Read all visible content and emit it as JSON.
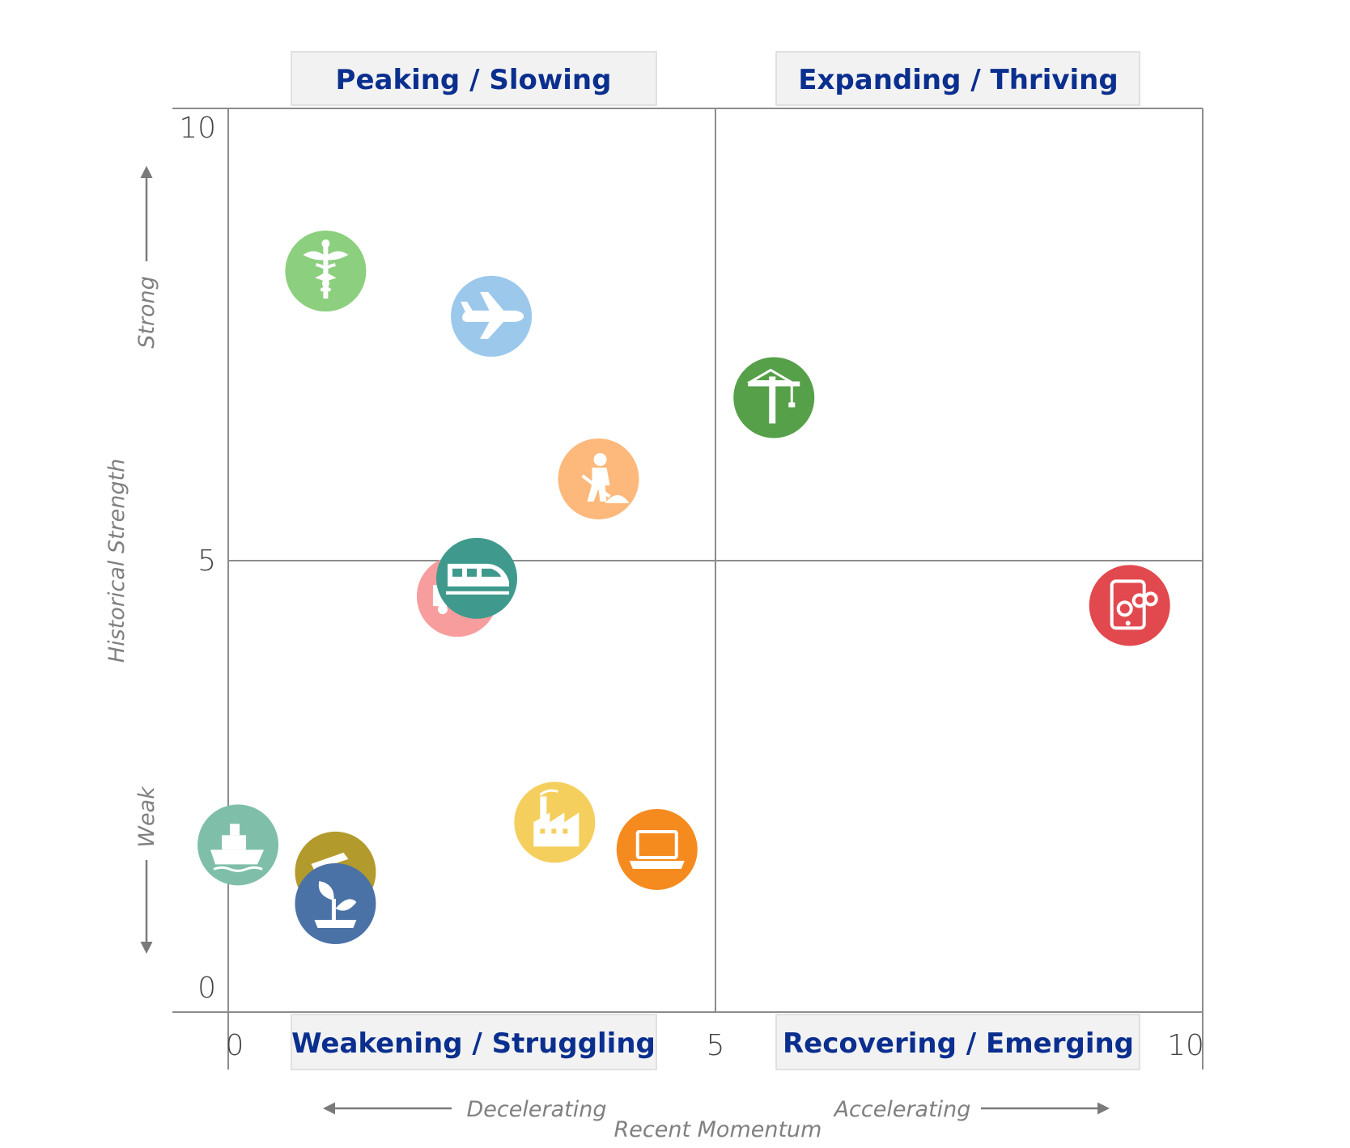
{
  "chart_data": {
    "type": "scatter",
    "title": "",
    "xlabel": "Recent Momentum",
    "ylabel": "Historical Strength",
    "xlim": [
      0,
      10
    ],
    "ylim": [
      0,
      10
    ],
    "x_ticks": [
      "0",
      "5",
      "10"
    ],
    "y_ticks": [
      "0",
      "5",
      "10"
    ],
    "x_direction": {
      "left": "Decelerating",
      "right": "Accelerating"
    },
    "y_direction": {
      "top": "Strong",
      "bottom": "Weak"
    },
    "quadrants": {
      "top_left": "Peaking / Slowing",
      "top_right": "Expanding / Thriving",
      "bottom_left": "Weakening / Struggling",
      "bottom_right": "Recovering / Emerging"
    },
    "colors": {
      "axis": "#808080",
      "quadrant_label": "#0b2f8f",
      "quadrant_box": "#f2f2f2"
    },
    "points": [
      {
        "icon": "caduceus-icon",
        "x": 1.0,
        "y": 8.2,
        "color": "#8ccf7e"
      },
      {
        "icon": "airplane-icon",
        "x": 2.7,
        "y": 7.7,
        "color": "#9cc8ec"
      },
      {
        "icon": "construction-worker-icon",
        "x": 3.8,
        "y": 5.9,
        "color": "#fdb97b"
      },
      {
        "icon": "crane-icon",
        "x": 5.6,
        "y": 6.8,
        "color": "#56a04a"
      },
      {
        "icon": "truck-icon",
        "x": 2.35,
        "y": 4.6,
        "color": "#f79d9d"
      },
      {
        "icon": "train-icon",
        "x": 2.55,
        "y": 4.8,
        "color": "#3f9a8d"
      },
      {
        "icon": "tablet-gears-icon",
        "x": 9.25,
        "y": 4.5,
        "color": "#e2494f"
      },
      {
        "icon": "ship-icon",
        "x": 0.1,
        "y": 1.85,
        "color": "#7fbfaa"
      },
      {
        "icon": "oil-pump-icon",
        "x": 1.1,
        "y": 1.55,
        "color": "#b39a2c"
      },
      {
        "icon": "plant-icon",
        "x": 1.1,
        "y": 1.2,
        "color": "#4a72a6"
      },
      {
        "icon": "factory-icon",
        "x": 3.35,
        "y": 2.1,
        "color": "#f5cf5e"
      },
      {
        "icon": "laptop-icon",
        "x": 4.4,
        "y": 1.8,
        "color": "#f58b1f"
      }
    ]
  }
}
